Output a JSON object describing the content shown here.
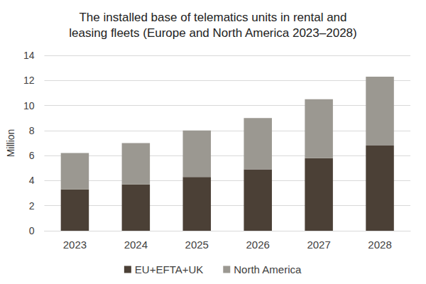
{
  "chart_data": {
    "type": "bar",
    "title": "The installed base of telematics units in rental and\nleasing fleets (Europe and North America 2023–2028)",
    "y_label": "Million",
    "categories": [
      "2023",
      "2024",
      "2025",
      "2026",
      "2027",
      "2028"
    ],
    "series": [
      {
        "name": "EU+EFTA+UK",
        "color": "#4b4036",
        "values": [
          3.3,
          3.7,
          4.3,
          4.9,
          5.8,
          6.8
        ]
      },
      {
        "name": "North America",
        "color": "#9b9891",
        "values": [
          2.9,
          3.3,
          3.7,
          4.1,
          4.7,
          5.5
        ]
      }
    ],
    "ylim": [
      0,
      14
    ],
    "yticks": [
      0,
      2,
      4,
      6,
      8,
      10,
      12,
      14
    ],
    "stacked": true,
    "grid": true,
    "legend": "bottom"
  }
}
